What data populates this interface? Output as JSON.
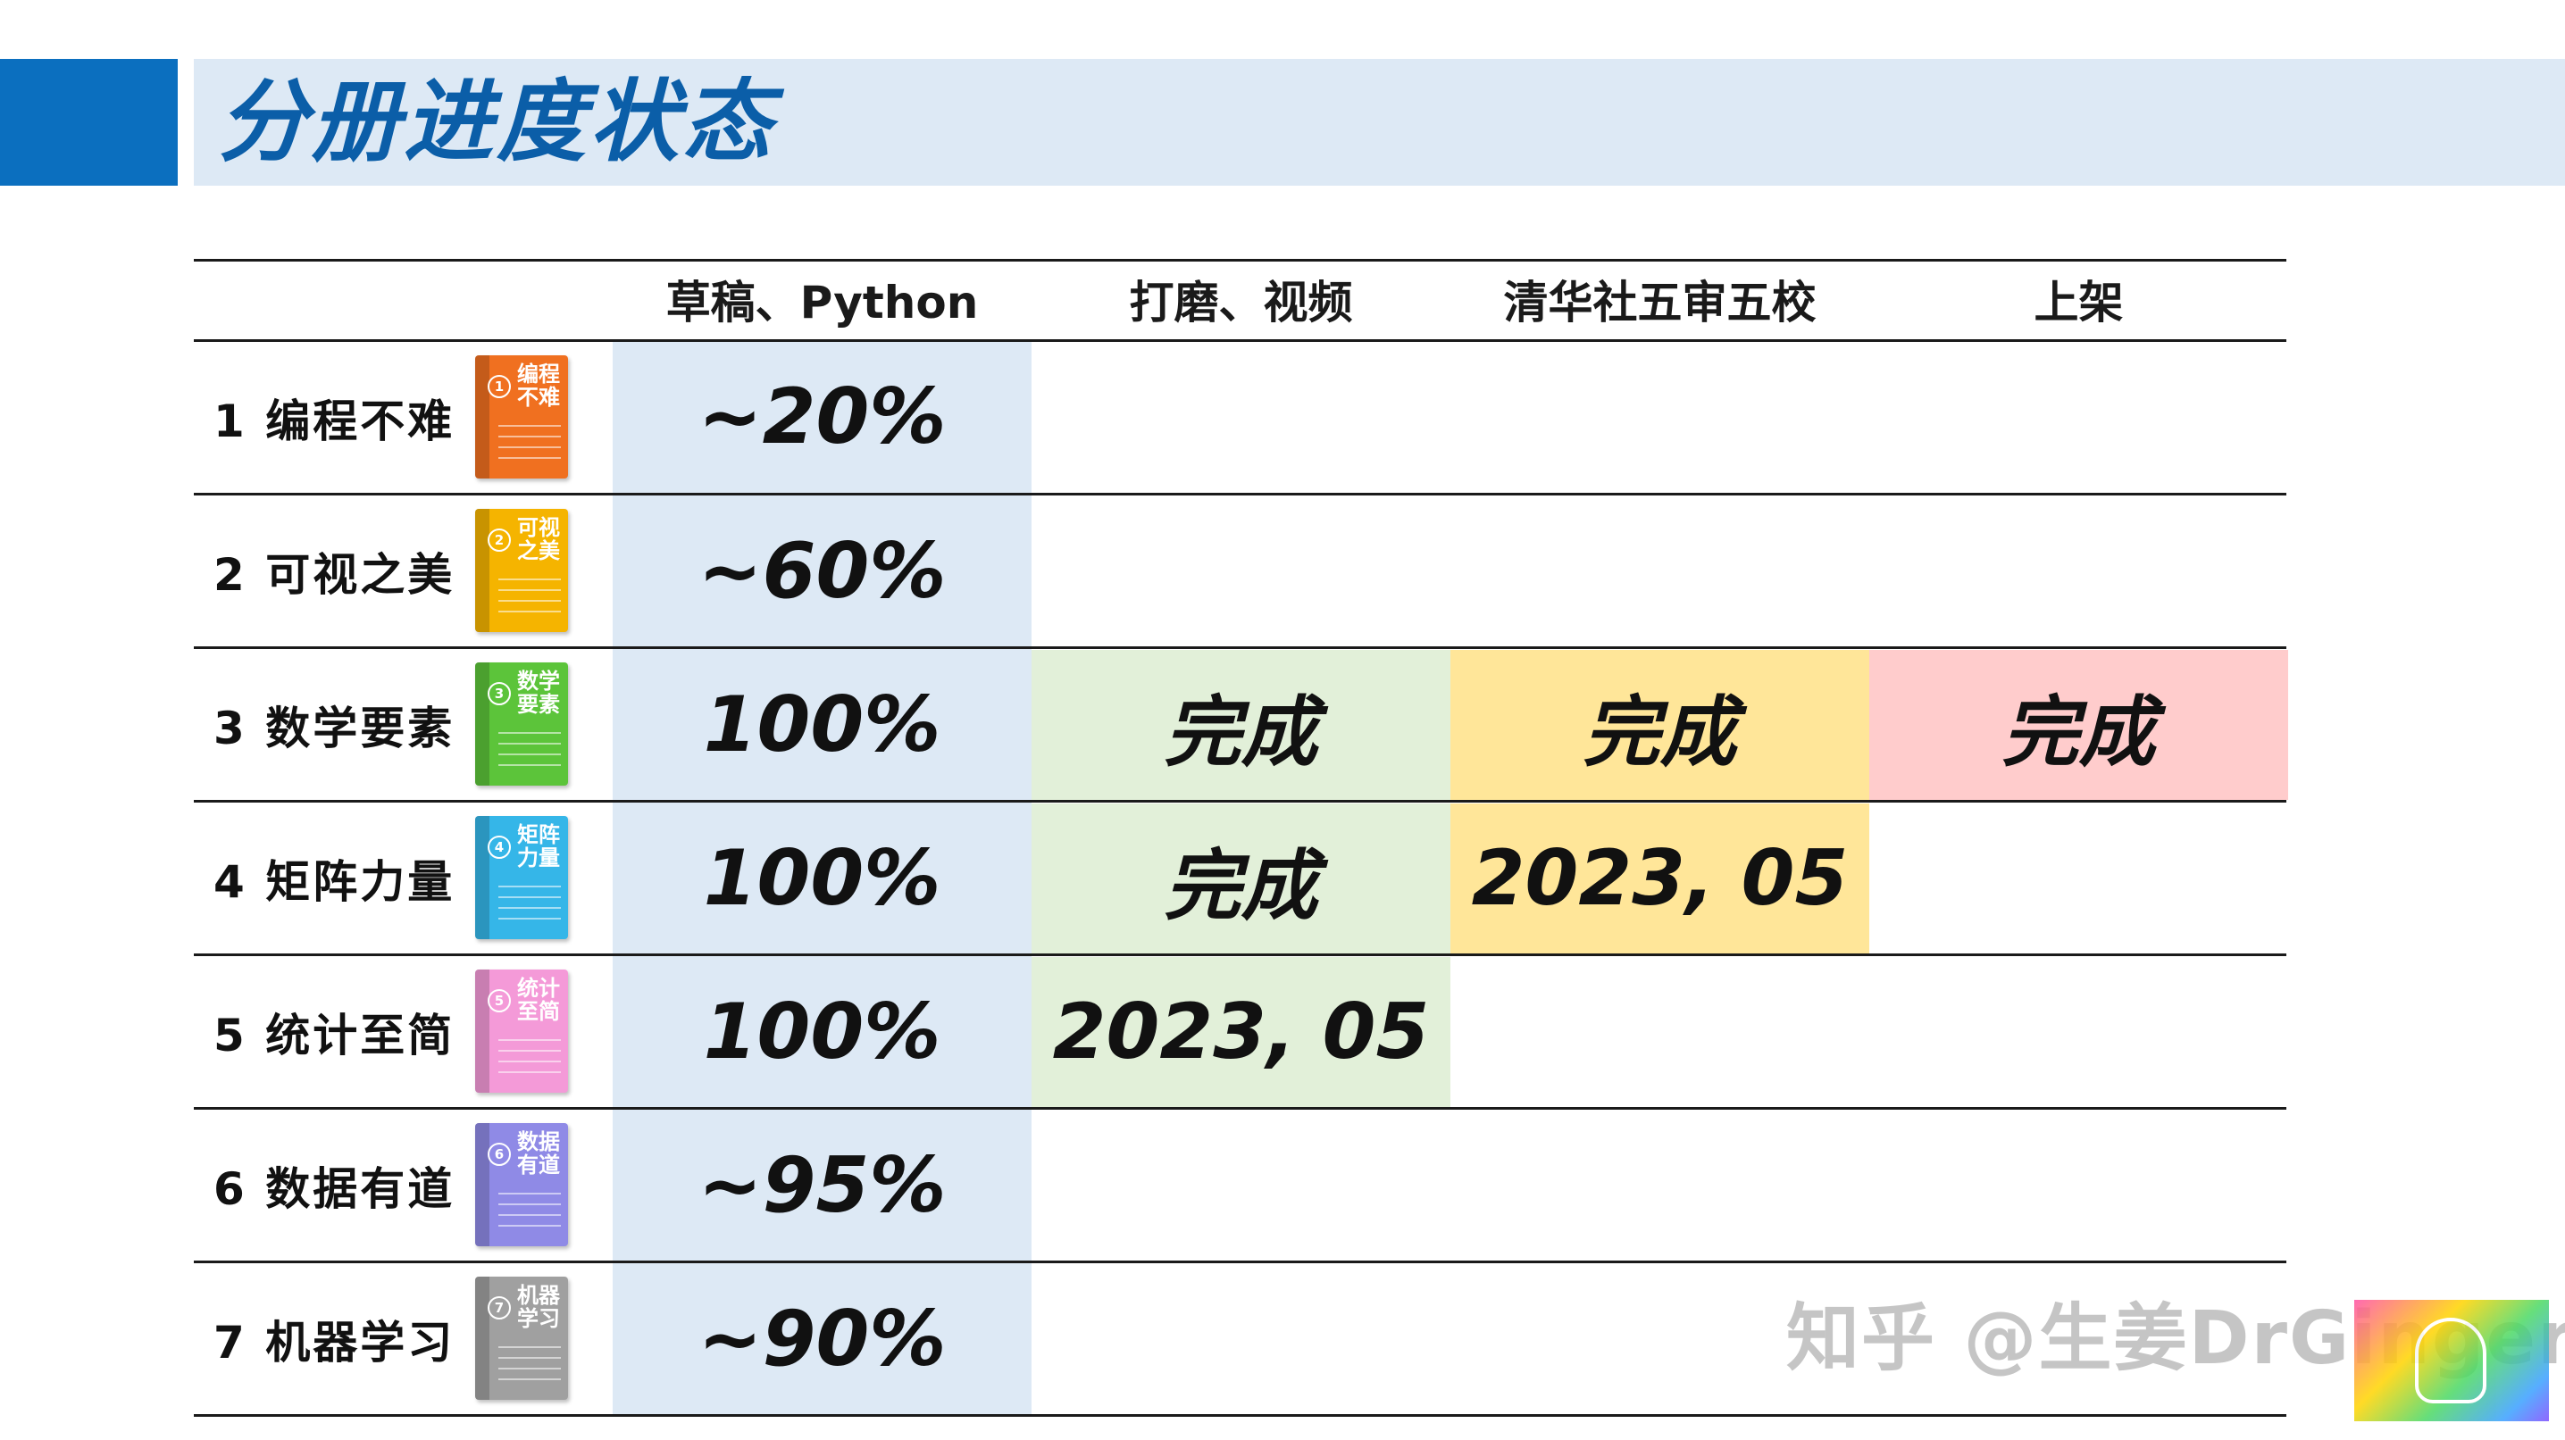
{
  "title": "分册进度状态",
  "headers": [
    "草稿、Python",
    "打磨、视频",
    "清华社五审五校",
    "上架"
  ],
  "colors": {
    "title_accent": "#0b6fbf",
    "title_bg": "#dde9f5",
    "draft_col": "#dde9f5",
    "polish_col": "#e2f0d9",
    "review_col": "#ffe699",
    "shelf_col": "#ffcccc"
  },
  "rows": [
    {
      "label": "1 编程不难",
      "book": {
        "num": "1",
        "title": "编程不难",
        "color": "#f07020"
      },
      "draft": "~20%",
      "polish": "",
      "review": "",
      "shelf": ""
    },
    {
      "label": "2 可视之美",
      "book": {
        "num": "2",
        "title": "可视之美",
        "color": "#f5b400"
      },
      "draft": "~60%",
      "polish": "",
      "review": "",
      "shelf": ""
    },
    {
      "label": "3 数学要素",
      "book": {
        "num": "3",
        "title": "数学要素",
        "color": "#5cc43a"
      },
      "draft": "100%",
      "polish": "完成",
      "review": "完成",
      "shelf": "完成"
    },
    {
      "label": "4 矩阵力量",
      "book": {
        "num": "4",
        "title": "矩阵力量",
        "color": "#35b6e8"
      },
      "draft": "100%",
      "polish": "完成",
      "review": "2023, 05",
      "shelf": ""
    },
    {
      "label": "5 统计至简",
      "book": {
        "num": "5",
        "title": "统计至简",
        "color": "#f49ad8"
      },
      "draft": "100%",
      "polish": "2023, 05",
      "review": "",
      "shelf": ""
    },
    {
      "label": "6 数据有道",
      "book": {
        "num": "6",
        "title": "数据有道",
        "color": "#8f8ae6"
      },
      "draft": "~95%",
      "polish": "",
      "review": "",
      "shelf": ""
    },
    {
      "label": "7 机器学习",
      "book": {
        "num": "7",
        "title": "机器学习",
        "color": "#a0a0a0"
      },
      "draft": "~90%",
      "polish": "",
      "review": "",
      "shelf": ""
    }
  ],
  "watermark": "知乎 @生姜DrGinger"
}
